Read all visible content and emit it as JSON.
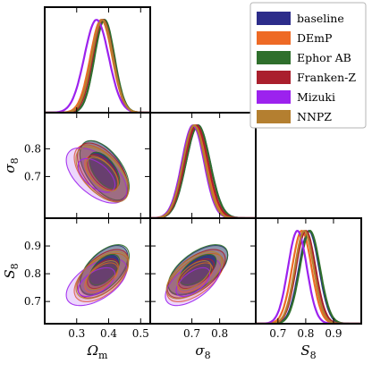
{
  "chart_data": {
    "type": "corner",
    "parameters": [
      {
        "name": "Omega_m",
        "label_main": "Ω",
        "label_sub": "m",
        "range": [
          0.2,
          0.53
        ],
        "ticks": [
          0.3,
          0.4,
          0.5
        ]
      },
      {
        "name": "sigma_8",
        "label_main": "σ",
        "label_sub": "8",
        "range": [
          0.55,
          0.93
        ],
        "ticks": [
          0.7,
          0.8
        ]
      },
      {
        "name": "S_8",
        "label_main": "S",
        "label_sub": "8",
        "range": [
          0.62,
          1.0
        ],
        "ticks": [
          0.7,
          0.8,
          0.9
        ]
      }
    ],
    "legend": {
      "placement": "top-right",
      "entries": [
        "baseline",
        "DEmP",
        "Ephor AB",
        "Franken-Z",
        "Mizuki",
        "NNPZ"
      ]
    },
    "series": [
      {
        "name": "baseline",
        "color": "#2c2c8a",
        "omega_m": {
          "mean": 0.385,
          "sigma": 0.03
        },
        "sigma_8": {
          "mean": 0.722,
          "sigma": 0.043
        },
        "s_8": {
          "mean": 0.812,
          "sigma": 0.036
        }
      },
      {
        "name": "DEmP",
        "color": "#ee6a25",
        "omega_m": {
          "mean": 0.377,
          "sigma": 0.034
        },
        "sigma_8": {
          "mean": 0.712,
          "sigma": 0.041
        },
        "s_8": {
          "mean": 0.786,
          "sigma": 0.035
        }
      },
      {
        "name": "Ephor AB",
        "color": "#2f6f2c",
        "omega_m": {
          "mean": 0.387,
          "sigma": 0.031
        },
        "sigma_8": {
          "mean": 0.722,
          "sigma": 0.043
        },
        "s_8": {
          "mean": 0.815,
          "sigma": 0.036
        }
      },
      {
        "name": "Franken-Z",
        "color": "#aa1f2d",
        "omega_m": {
          "mean": 0.382,
          "sigma": 0.032
        },
        "sigma_8": {
          "mean": 0.716,
          "sigma": 0.042
        },
        "s_8": {
          "mean": 0.8,
          "sigma": 0.035
        }
      },
      {
        "name": "Mizuki",
        "color": "#9c22ee",
        "omega_m": {
          "mean": 0.362,
          "sigma": 0.038
        },
        "sigma_8": {
          "mean": 0.704,
          "sigma": 0.04
        },
        "s_8": {
          "mean": 0.77,
          "sigma": 0.034
        }
      },
      {
        "name": "NNPZ",
        "color": "#b47f30",
        "omega_m": {
          "mean": 0.38,
          "sigma": 0.033
        },
        "sigma_8": {
          "mean": 0.708,
          "sigma": 0.04
        },
        "s_8": {
          "mean": 0.795,
          "sigma": 0.034
        }
      }
    ]
  }
}
